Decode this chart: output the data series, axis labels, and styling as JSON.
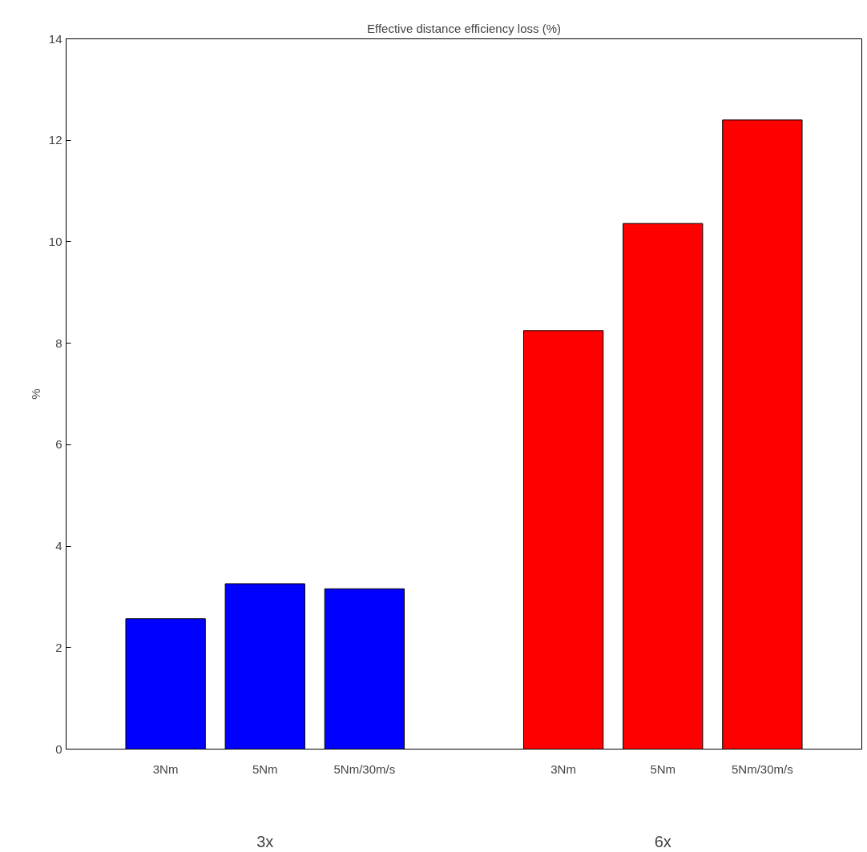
{
  "chart_data": {
    "type": "bar",
    "title": "Effective distance efficiency loss (%)",
    "ylabel": "%",
    "categories": [
      "3Nm",
      "5Nm",
      "5Nm/30m/s",
      null,
      "3Nm",
      "5Nm",
      "5Nm/30m/s"
    ],
    "values": [
      2.57,
      3.26,
      3.16,
      null,
      8.25,
      10.36,
      12.4
    ],
    "colors": [
      "#0000ff",
      "#0000ff",
      "#0000ff",
      null,
      "#ff0000",
      "#ff0000",
      "#ff0000"
    ],
    "annotations": [
      "3x",
      "6x"
    ],
    "ylim": [
      0,
      14
    ],
    "yticks": [
      0,
      2,
      4,
      6,
      8,
      10,
      12,
      14
    ],
    "grid": false
  }
}
